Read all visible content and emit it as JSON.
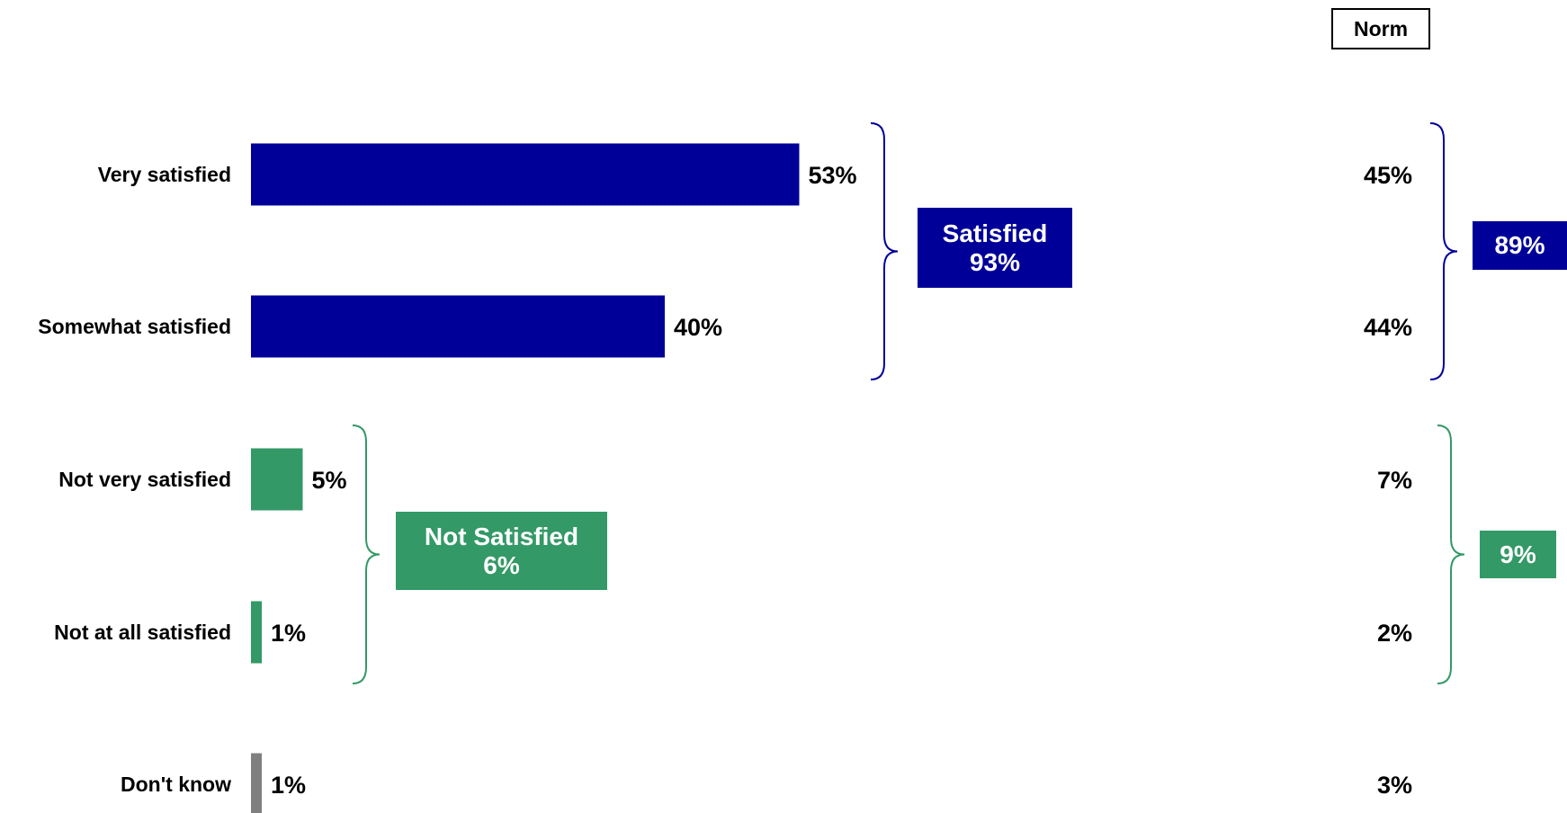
{
  "chart_data": {
    "type": "bar",
    "orientation": "horizontal",
    "categories": [
      "Very satisfied",
      "Somewhat satisfied",
      "Not very satisfied",
      "Not at all satisfied",
      "Don't know"
    ],
    "values": [
      53,
      40,
      5,
      1,
      1
    ],
    "value_labels": [
      "53%",
      "40%",
      "5%",
      "1%",
      "1%"
    ],
    "bar_colors": [
      "#000099",
      "#000099",
      "#339966",
      "#339966",
      "#808080"
    ],
    "norm_header": "Norm",
    "norm_values": [
      45,
      44,
      7,
      2,
      3
    ],
    "norm_labels": [
      "45%",
      "44%",
      "7%",
      "2%",
      "3%"
    ],
    "groups": [
      {
        "title": "Satisfied",
        "value_label": "93%",
        "norm_label": "89%",
        "color": "#000099",
        "members": [
          "Very satisfied",
          "Somewhat satisfied"
        ]
      },
      {
        "title": "Not Satisfied",
        "value_label": "6%",
        "norm_label": "9%",
        "color": "#339966",
        "members": [
          "Not very satisfied",
          "Not at all satisfied"
        ]
      }
    ],
    "xlim": [
      0,
      100
    ],
    "grid": false,
    "legend": "none"
  }
}
